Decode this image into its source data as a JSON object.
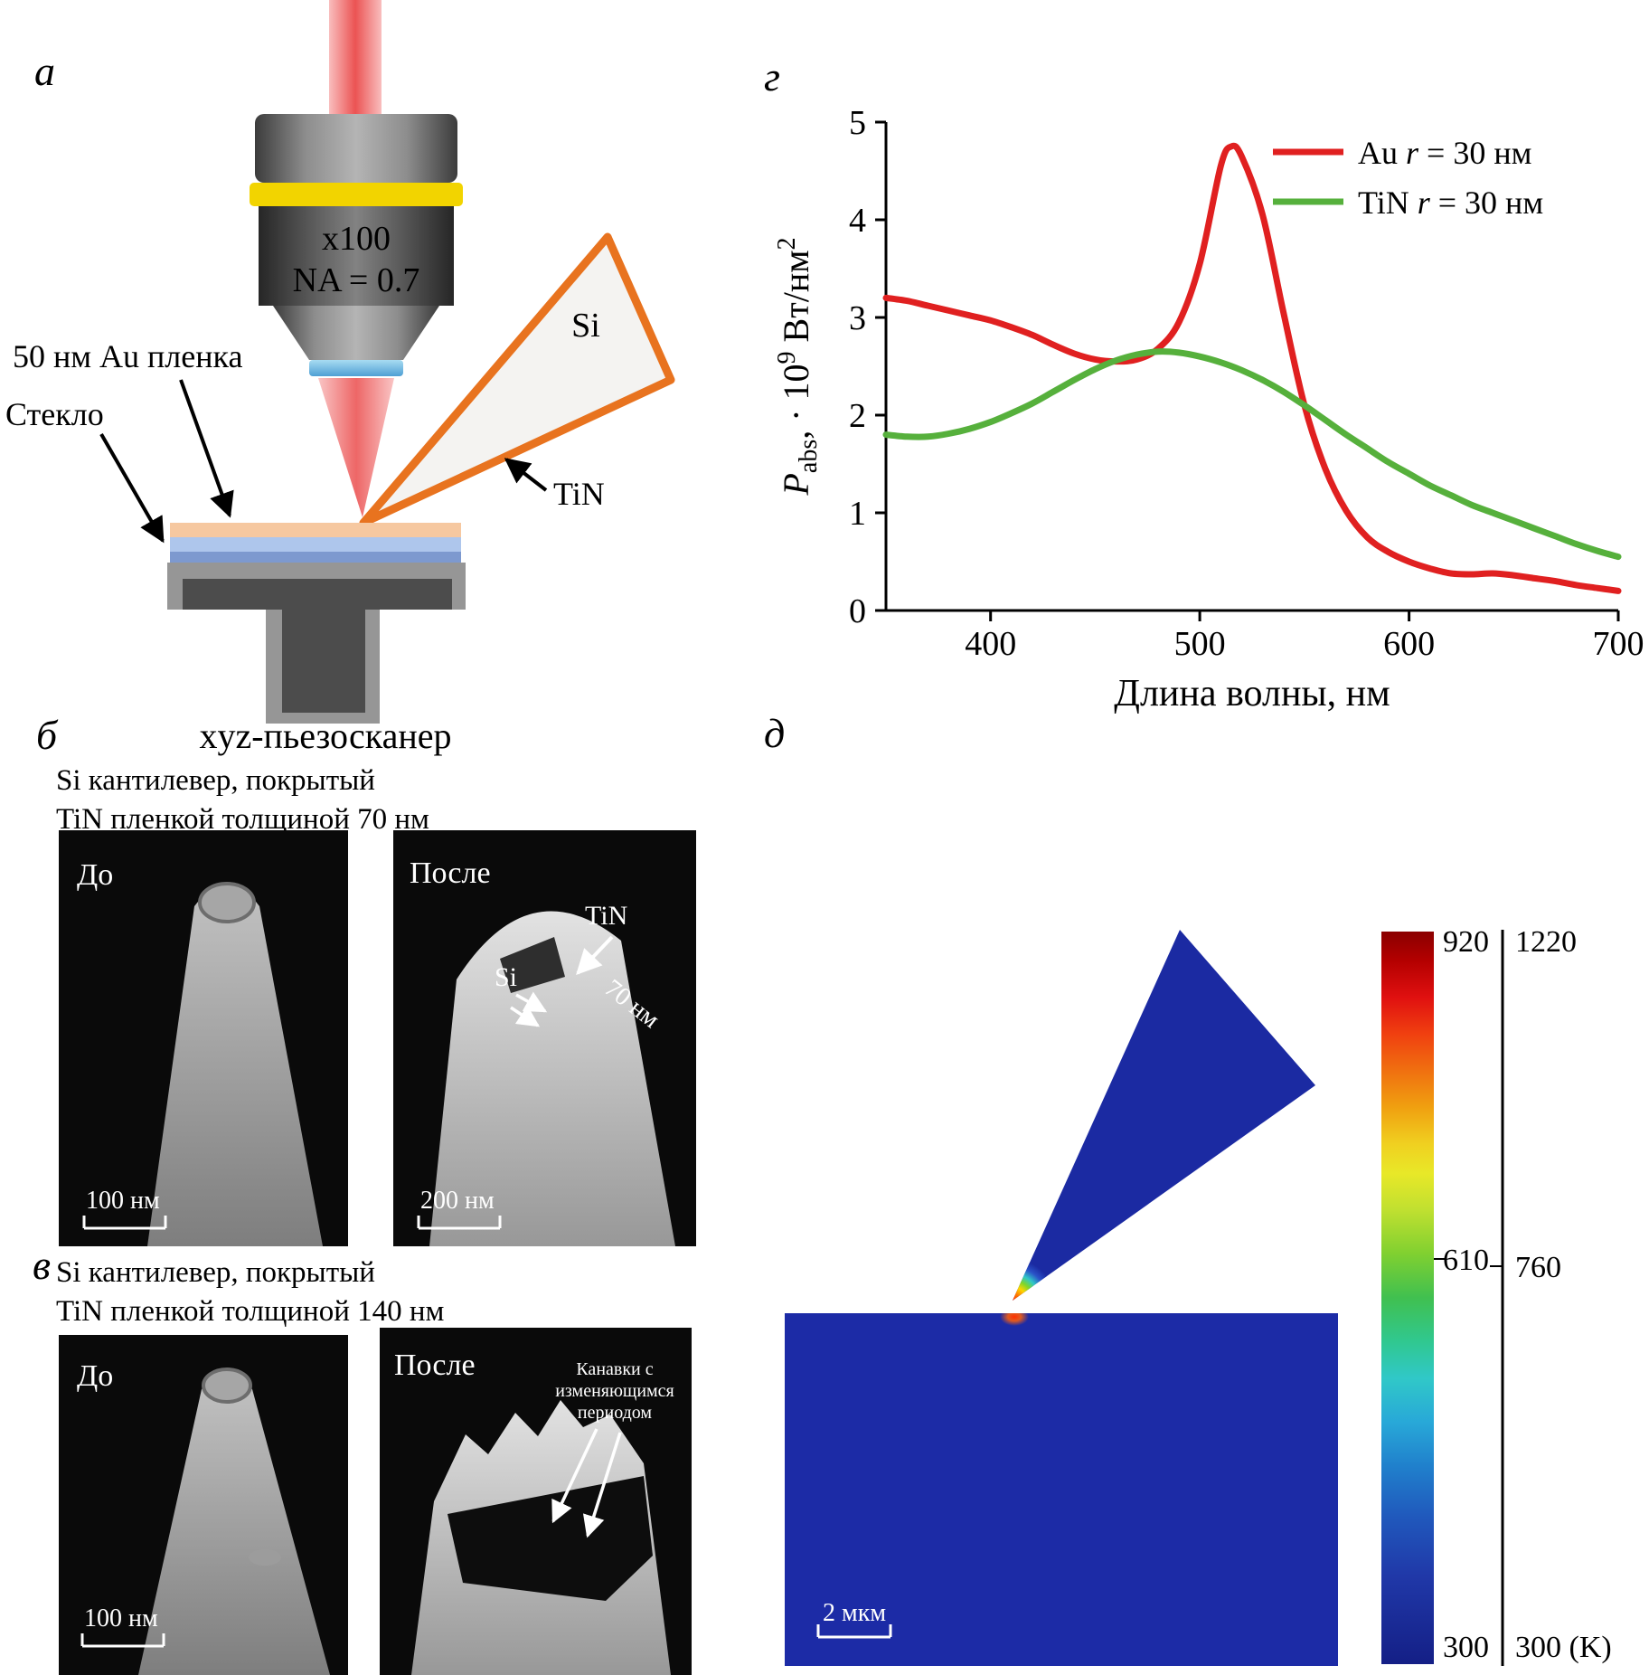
{
  "figure": {
    "panel_a": {
      "label": "а",
      "objective": {
        "line1": "x100",
        "line2": "NA = 0.7"
      },
      "cantilever_material": "Si",
      "coating_label": "TiN",
      "film_label": "50 нм Au пленка",
      "substrate_label": "Стекло",
      "scanner_label": "xyz-пьезосканер"
    },
    "panel_b": {
      "label": "б",
      "heading_line1": "Si кантилевер, покрытый",
      "heading_line2": "TiN пленкой толщиной 70 нм",
      "before": {
        "label": "До",
        "scale": "100 нм"
      },
      "after": {
        "label": "После",
        "scale": "200 нм",
        "tin": "TiN",
        "si": "Si",
        "thickness": "70 нм"
      }
    },
    "panel_v": {
      "label": "в",
      "heading_line1": "Si кантилевер, покрытый",
      "heading_line2": "TiN пленкой толщиной 140 нм",
      "before": {
        "label": "До",
        "scale": "100 нм"
      },
      "after": {
        "label": "После",
        "annotation_line1": "Канавки с",
        "annotation_line2": "изменяющимся",
        "annotation_line3": "периодом"
      }
    },
    "panel_g": {
      "label": "г"
    },
    "panel_d": {
      "label": "д",
      "scale": "2 мкм",
      "colorbar": {
        "inner_ticks": [
          "920",
          "610",
          "300"
        ],
        "outer_ticks": [
          "1220",
          "760",
          "300 (K)"
        ]
      }
    }
  },
  "chart_data": {
    "type": "line",
    "title": "",
    "xlabel": "Длина волны, нм",
    "ylabel": "Pabs, · 10^9 Вт/нм^2",
    "ylabel_parts": {
      "sym": "P",
      "sub": "abs",
      "mid": ", · 10",
      "exp": "9",
      "unit": " Вт/нм",
      "exp2": "2"
    },
    "xlim": [
      350,
      700
    ],
    "ylim": [
      0,
      5
    ],
    "x_ticks": [
      "400",
      "500",
      "600",
      "700"
    ],
    "y_ticks": [
      "0",
      "1",
      "2",
      "3",
      "4",
      "5"
    ],
    "grid": false,
    "legend_position": "top-right",
    "series": [
      {
        "name": "Au r = 30 нм",
        "label_pre": "Au ",
        "label_it": "r",
        "label_post": " = 30 нм",
        "color": "#e02020",
        "x": [
          350,
          360,
          370,
          380,
          390,
          400,
          410,
          420,
          430,
          440,
          450,
          460,
          470,
          480,
          490,
          500,
          510,
          515,
          520,
          530,
          540,
          550,
          560,
          570,
          580,
          590,
          600,
          610,
          620,
          630,
          640,
          650,
          660,
          670,
          680,
          690,
          700
        ],
        "y": [
          3.2,
          3.17,
          3.12,
          3.07,
          3.02,
          2.97,
          2.9,
          2.82,
          2.72,
          2.63,
          2.57,
          2.55,
          2.57,
          2.68,
          2.95,
          3.55,
          4.55,
          4.75,
          4.65,
          4.05,
          3.05,
          2.1,
          1.45,
          1.02,
          0.75,
          0.6,
          0.5,
          0.43,
          0.38,
          0.37,
          0.38,
          0.36,
          0.33,
          0.3,
          0.26,
          0.23,
          0.2
        ]
      },
      {
        "name": "TiN r = 30 нм",
        "label_pre": "TiN ",
        "label_it": "r",
        "label_post": " = 30 нм",
        "color": "#56b03c",
        "x": [
          350,
          360,
          370,
          380,
          390,
          400,
          410,
          420,
          430,
          440,
          450,
          460,
          470,
          480,
          490,
          500,
          510,
          520,
          530,
          540,
          550,
          560,
          570,
          580,
          590,
          600,
          610,
          620,
          630,
          640,
          650,
          660,
          670,
          680,
          690,
          700
        ],
        "y": [
          1.8,
          1.78,
          1.78,
          1.81,
          1.86,
          1.93,
          2.02,
          2.12,
          2.24,
          2.36,
          2.47,
          2.56,
          2.62,
          2.65,
          2.64,
          2.6,
          2.54,
          2.46,
          2.36,
          2.24,
          2.1,
          1.95,
          1.8,
          1.66,
          1.52,
          1.4,
          1.28,
          1.18,
          1.08,
          1.0,
          0.92,
          0.84,
          0.76,
          0.68,
          0.61,
          0.55
        ]
      }
    ]
  }
}
